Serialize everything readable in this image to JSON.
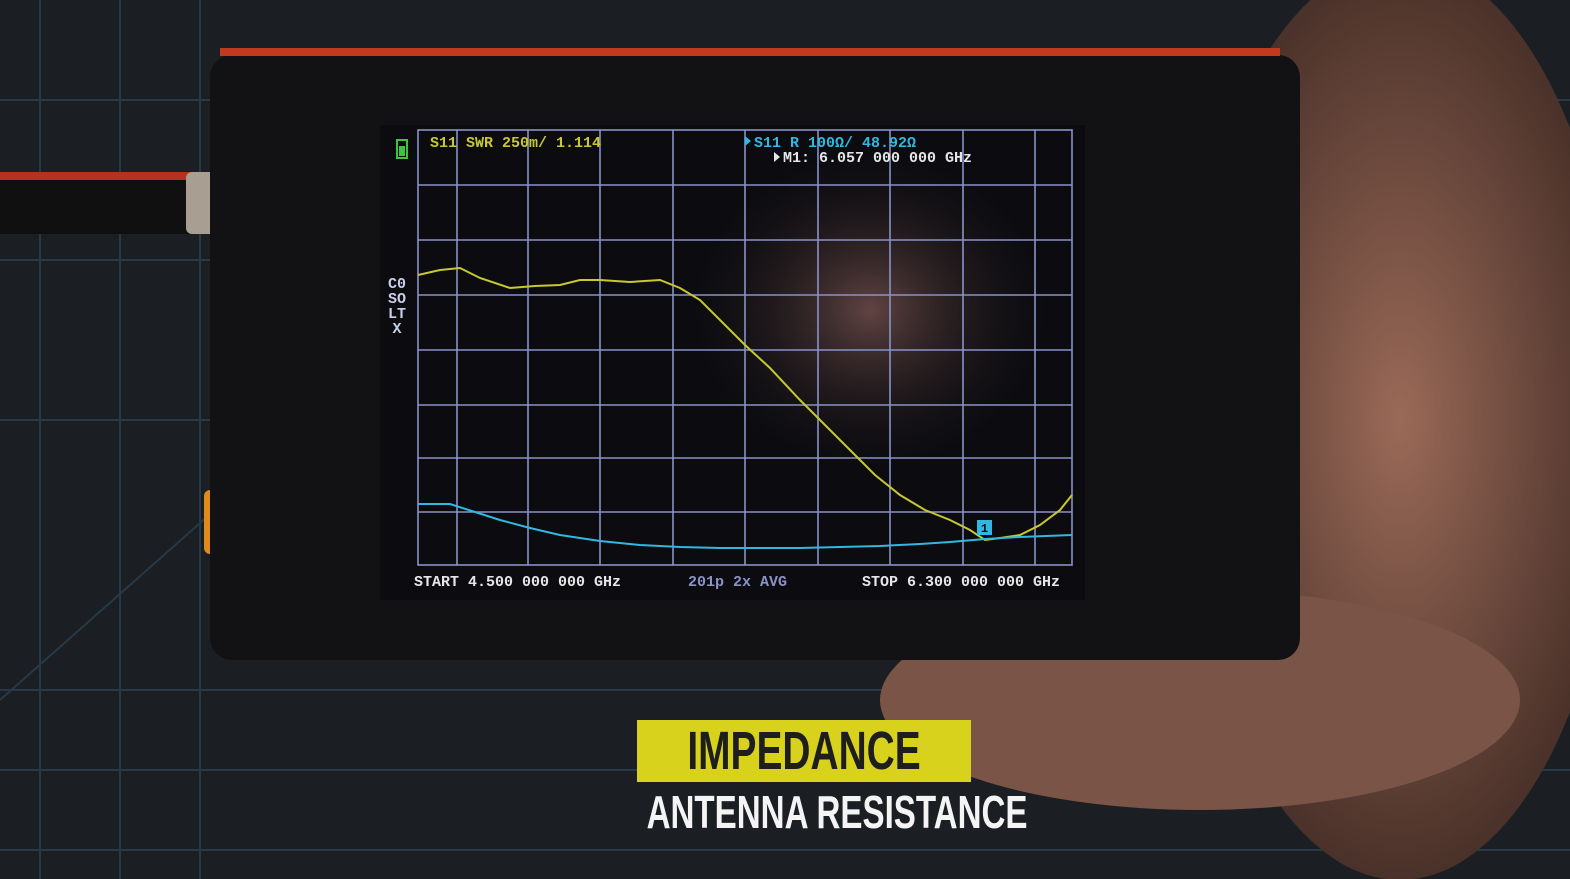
{
  "screen": {
    "trace1_header": "S11 SWR 250m/ 1.114",
    "trace2_header": "S11 R 100Ω/ 48.92Ω",
    "marker_readout": "M1: 6.057 000 000 GHz",
    "cal_channel": "C0",
    "cal_flags": "SOLTX",
    "start": "START 4.500 000 000 GHz",
    "sweep_info": "201p  2x AVG",
    "stop": "STOP 6.300 000 000 GHz",
    "marker_label": "1"
  },
  "caption": {
    "title": "IMPEDANCE",
    "subtitle": "ANTENNA RESISTANCE"
  }
}
